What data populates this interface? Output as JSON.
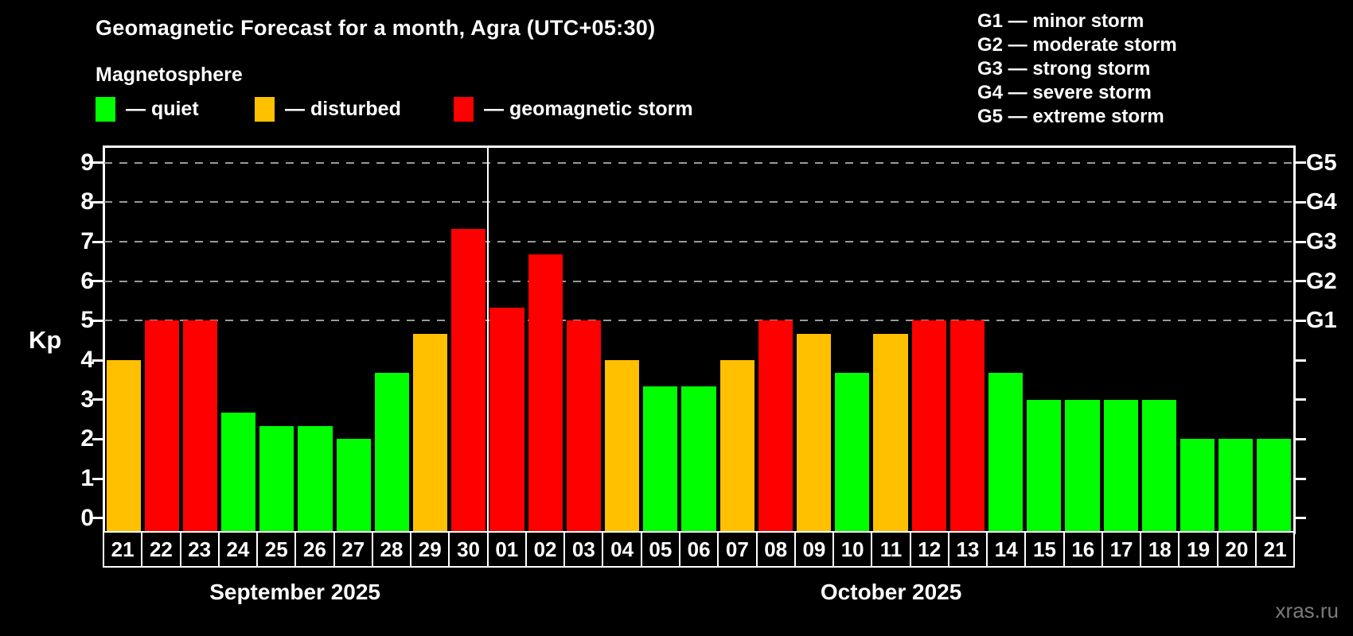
{
  "title": "Geomagnetic Forecast for a month, Agra (UTC+05:30)",
  "subtitle": "Magnetosphere",
  "legend": {
    "items": [
      {
        "label": "— quiet",
        "color": "#00ff00",
        "status": "quiet"
      },
      {
        "label": "— disturbed",
        "color": "#ffc000",
        "status": "disturbed"
      },
      {
        "label": "— geomagnetic storm",
        "color": "#ff0000",
        "status": "storm"
      }
    ]
  },
  "storm_scale_legend": [
    "G1 — minor storm",
    "G2 — moderate storm",
    "G3 — strong storm",
    "G4 — severe storm",
    "G5 — extreme storm"
  ],
  "y_axis": {
    "label": "Kp"
  },
  "watermark": "xras.ru",
  "chart_data": {
    "type": "bar",
    "title": "Geomagnetic Forecast for a month, Agra (UTC+05:30)",
    "ylabel": "Kp",
    "ylim": [
      0,
      9
    ],
    "y_ticks": [
      0,
      1,
      2,
      3,
      4,
      5,
      6,
      7,
      8,
      9
    ],
    "gridlines_at": [
      5,
      6,
      7,
      8,
      9
    ],
    "grid": "dashed-horizontal",
    "legend_position": "top",
    "right_axis_labels": [
      {
        "kp": 5,
        "label": "G1"
      },
      {
        "kp": 6,
        "label": "G2"
      },
      {
        "kp": 7,
        "label": "G3"
      },
      {
        "kp": 8,
        "label": "G4"
      },
      {
        "kp": 9,
        "label": "G5"
      }
    ],
    "status_colors": {
      "quiet": "#00ff00",
      "disturbed": "#ffc000",
      "storm": "#ff0000"
    },
    "months": [
      {
        "label": "September 2025",
        "days": 10
      },
      {
        "label": "October 2025",
        "days": 21
      }
    ],
    "days": [
      {
        "day": "21",
        "kp": 4.0,
        "status": "disturbed"
      },
      {
        "day": "22",
        "kp": 5.0,
        "status": "storm"
      },
      {
        "day": "23",
        "kp": 5.0,
        "status": "storm"
      },
      {
        "day": "24",
        "kp": 2.67,
        "status": "quiet"
      },
      {
        "day": "25",
        "kp": 2.33,
        "status": "quiet"
      },
      {
        "day": "26",
        "kp": 2.33,
        "status": "quiet"
      },
      {
        "day": "27",
        "kp": 2.0,
        "status": "quiet"
      },
      {
        "day": "28",
        "kp": 3.67,
        "status": "quiet"
      },
      {
        "day": "29",
        "kp": 4.67,
        "status": "disturbed"
      },
      {
        "day": "30",
        "kp": 7.33,
        "status": "storm"
      },
      {
        "day": "01",
        "kp": 5.33,
        "status": "storm"
      },
      {
        "day": "02",
        "kp": 6.67,
        "status": "storm"
      },
      {
        "day": "03",
        "kp": 5.0,
        "status": "storm"
      },
      {
        "day": "04",
        "kp": 4.0,
        "status": "disturbed"
      },
      {
        "day": "05",
        "kp": 3.33,
        "status": "quiet"
      },
      {
        "day": "06",
        "kp": 3.33,
        "status": "quiet"
      },
      {
        "day": "07",
        "kp": 4.0,
        "status": "disturbed"
      },
      {
        "day": "08",
        "kp": 5.0,
        "status": "storm"
      },
      {
        "day": "09",
        "kp": 4.67,
        "status": "disturbed"
      },
      {
        "day": "10",
        "kp": 3.67,
        "status": "quiet"
      },
      {
        "day": "11",
        "kp": 4.67,
        "status": "disturbed"
      },
      {
        "day": "12",
        "kp": 5.0,
        "status": "storm"
      },
      {
        "day": "13",
        "kp": 5.0,
        "status": "storm"
      },
      {
        "day": "14",
        "kp": 3.67,
        "status": "quiet"
      },
      {
        "day": "15",
        "kp": 3.0,
        "status": "quiet"
      },
      {
        "day": "16",
        "kp": 3.0,
        "status": "quiet"
      },
      {
        "day": "17",
        "kp": 3.0,
        "status": "quiet"
      },
      {
        "day": "18",
        "kp": 3.0,
        "status": "quiet"
      },
      {
        "day": "19",
        "kp": 2.0,
        "status": "quiet"
      },
      {
        "day": "20",
        "kp": 2.0,
        "status": "quiet"
      },
      {
        "day": "21",
        "kp": 2.0,
        "status": "quiet"
      }
    ]
  }
}
